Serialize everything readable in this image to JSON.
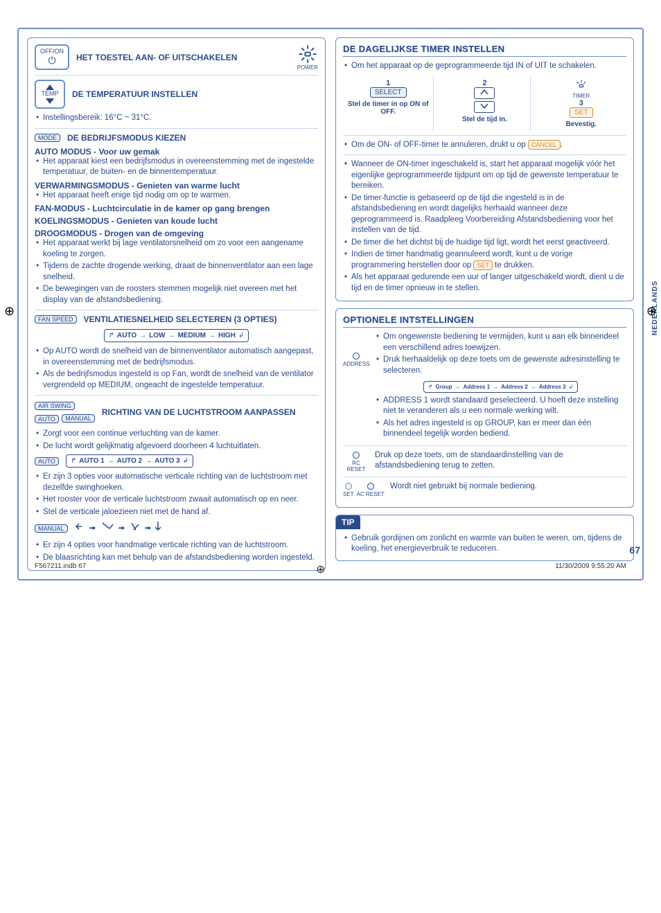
{
  "cropColors": [
    "#000",
    "#4a4a4a",
    "#808080",
    "#b3b3b3",
    "#fff",
    "#fff",
    "#fff",
    "#fff"
  ],
  "cropColorsR": [
    "#fff200",
    "#ec008c",
    "#00aeef",
    "#000",
    "#00a651",
    "#ed1c24",
    "#fff799",
    "#f49ac1",
    "#6dcff6"
  ],
  "sideTab": "NEDERLANDS",
  "pageNum": "67",
  "footer": {
    "file": "F567211.indb   67",
    "date": "11/30/2009   9:55:20 AM"
  },
  "left": {
    "s1": {
      "btn": "OFF/ON",
      "title": "HET TOESTEL AAN- OF UITSCHAKELEN",
      "power": "POWER"
    },
    "s2": {
      "btn": "TEMP",
      "title": "DE TEMPERATUUR INSTELLEN",
      "note": "Instellingsbereik: 16°C ~ 31°C."
    },
    "s3": {
      "btn": "MODE",
      "title": "DE BEDRIJFSMODUS KIEZEN",
      "m1h": "AUTO MODUS - Voor uw gemak",
      "m1b": "Het apparaat kiest een bedrijfsmodus in overeenstemming met de ingestelde temperatuur, de buiten- en de binnentemperatuur.",
      "m2h": "VERWARMINGSMODUS - Genieten van warme lucht",
      "m2b": "Het apparaat heeft enige tijd nodig om op te warmen.",
      "m3h": "FAN-MODUS - Luchtcirculatie in de kamer op gang brengen",
      "m4h": "KOELINGSMODUS - Genieten van koude lucht",
      "m5h": "DROOGMODUS - Drogen van de omgeving",
      "m5b1": "Het apparaat werkt bij lage ventilatorsnelheid om zo voor een aangename koeling te zorgen.",
      "m5b2": "Tijdens de zachte drogende werking, draait de binnenventilator aan een lage snelheid.",
      "m5b3": "De bewegingen van de roosters stemmen mogelijk niet overeen met het display van de afstandsbediening."
    },
    "s4": {
      "btn": "FAN SPEED",
      "title": "VENTILATIESNELHEID SELECTEREN (3 OPTIES)",
      "cycle": [
        "AUTO",
        "LOW",
        "MEDIUM",
        "HIGH"
      ],
      "b1": "Op AUTO wordt de snelheid van de binnenventilator automatisch aangepast, in overeenstemming met de bedrijfsmodus.",
      "b2": "Als de bedrijfsmodus ingesteld is op Fan, wordt de snelheid van de ventilator vergrendeld op MEDIUM, ongeacht de ingestelde temperatuur."
    },
    "s5": {
      "btns": [
        "AIR SWING",
        "AUTO",
        "MANUAL"
      ],
      "title": "RICHTING VAN DE LUCHTSTROOM AANPASSEN",
      "b1": "Zorgt voor een continue verluchting van de kamer.",
      "b2": "De lucht wordt gelijkmatig afgevoerd doorheen 4 luchtuitlaten.",
      "autoBtn": "AUTO",
      "autoCycle": [
        "AUTO 1",
        "AUTO 2",
        "AUTO 3"
      ],
      "ab1": "Er zijn 3 opties voor automatische verticale richting van de luchtstroom met dezelfde swinghoeken.",
      "ab2": "Het rooster voor de verticale luchtstroom zwaait automatisch op en neer.",
      "ab3": "Stel de verticale jaloezieen niet met de hand af.",
      "manBtn": "MANUAL",
      "mb1": "Er zijn 4 opties voor handmatige verticale richting van de luchtstroom.",
      "mb2": "De blaasrichting kan met behulp van de afstandsbediening worden ingesteld."
    }
  },
  "right": {
    "timer": {
      "title": "DE DAGELIJKSE TIMER INSTELLEN",
      "intro": "Om het apparaat op de geprogrammeerde tijd IN of UIT te schakelen.",
      "c1n": "1",
      "c1btn": "SELECT",
      "c1cap": "Stel de timer in op ON of OFF.",
      "c2n": "2",
      "c2cap": "Stel de tijd in.",
      "c3lbl": "TIMER",
      "c3n": "3",
      "c3btn": "SET",
      "c3cap": "Bevestig.",
      "cancel": "Om de ON- of OFF-timer te annuleren, drukt u op",
      "cancelBtn": "CANCEL",
      "n1": "Wanneer de ON-timer ingeschakeld is, start het apparaat mogelijk vóór het eigenlijke geprogrammeerde tijdpunt om op tijd de gewenste temperatuur te bereiken.",
      "n2a": "De timer-functie is gebaseerd op de tijd die ingesteld is in de afstandsbediening en wordt dagelijks herhaald wanneer deze geprogrammeerd is. Raadpleeg Voorbereiding Afstandsbediening voor het instellen van de tijd.",
      "n3": "De timer die het dichtst bij de huidige tijd ligt, wordt het eerst geactiveerd.",
      "n4a": "Indien de timer handmatig geannuleerd wordt, kunt u de vorige programmering herstellen door op",
      "n4btn": "SET",
      "n4b": "te drukken.",
      "n5": "Als het apparaat gedurende een uur of langer uitgeschakeld wordt, dient u de tijd en de timer opnieuw in te stellen."
    },
    "opt": {
      "title": "OPTIONELE INTSTELLINGEN",
      "addrLbl": "ADDRESS",
      "a1": "Om ongewenste bediening te vermijden, kunt u aan elk binnendeel een verschillend adres toewijzen.",
      "a2": "Druk herhaaldelijk op deze toets om de gewenste adresinstelling te selecteren.",
      "cycle": [
        "Group",
        "Address 1",
        "Address 2",
        "Address 3"
      ],
      "a3": "ADDRESS 1 wordt standaard geselecteerd. U hoeft deze instelling niet te veranderen als u een normale werking wilt.",
      "a4": "Als het adres ingesteld is op GROUP, kan er meer dan één binnendeel tegelijk worden bediend.",
      "rcLbl": "RC RESET",
      "rcText": "Druk op deze toets, om de standaardinstelling van de afstandsbediening terug te zetten.",
      "setLbl": "SET",
      "acLbl": "AC RESET",
      "setText": "Wordt niet gebruikt bij normale bediening."
    },
    "tip": {
      "hdr": "TIP",
      "body": "Gebruik gordijnen om zonlicht en warmte van buiten te weren, om, tijdens de koeling, het energieverbruik te reduceren."
    }
  }
}
